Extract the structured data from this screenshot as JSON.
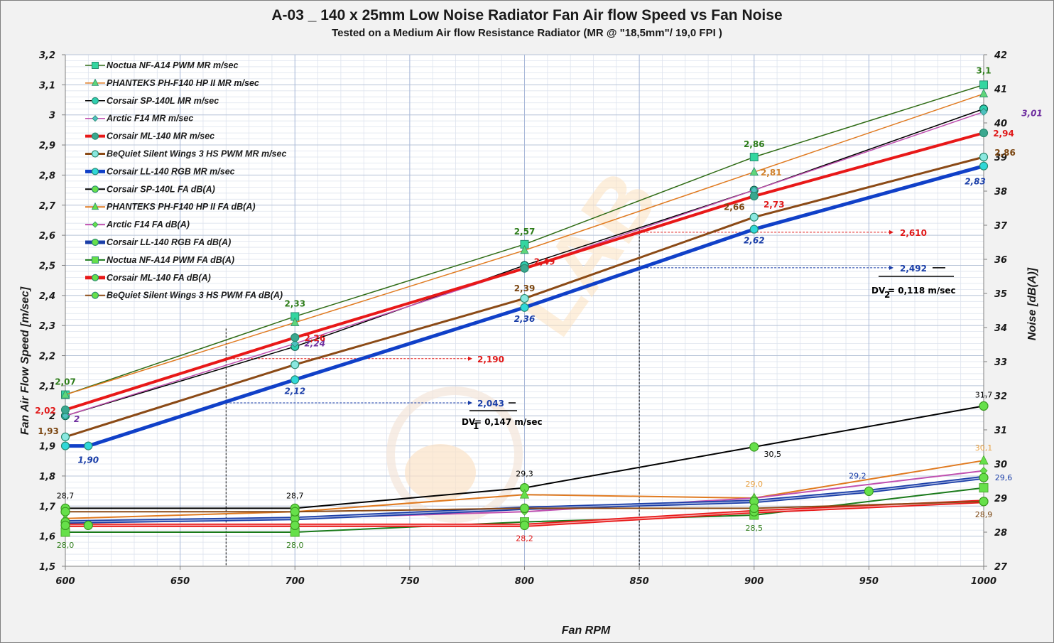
{
  "chart_data": {
    "type": "line",
    "title": "A-03 _ 140 x 25mm Low Noise  Radiator Fan Air flow Speed vs Fan Noise",
    "subtitle": "Tested on a Medium Air flow Resistance Radiator  (MR @ \"18,5mm\"/ 19,0 FPI )",
    "xlabel": "Fan RPM",
    "ylabel": "Fan Air Flow Speed [m/sec]",
    "y2label": "Noise [dB(A)]",
    "xlim": [
      600,
      1000
    ],
    "ylim": [
      1.5,
      3.2
    ],
    "y2lim": [
      27,
      42
    ],
    "x_ticks": [
      "600",
      "650",
      "700",
      "750",
      "800",
      "850",
      "900",
      "950",
      "1000"
    ],
    "y_ticks": [
      "1,5",
      "1,6",
      "1,7",
      "1,8",
      "1,9",
      "2",
      "2,1",
      "2,2",
      "2,3",
      "2,4",
      "2,5",
      "2,6",
      "2,7",
      "2,8",
      "2,9",
      "3",
      "3,1",
      "3,2"
    ],
    "y2_ticks": [
      "27",
      "28",
      "29",
      "30",
      "31",
      "32",
      "33",
      "34",
      "35",
      "36",
      "37",
      "38",
      "39",
      "40",
      "41",
      "42"
    ],
    "grid": true,
    "legend_position": "top-left",
    "speed_series": [
      {
        "name": "Noctua NF-A14 PWM MR m/sec",
        "color": "#2e6b14",
        "marker": "square",
        "marker_fill": "#33d6a0",
        "width": 1.5,
        "x": [
          600,
          700,
          800,
          900,
          1000
        ],
        "values": [
          2.07,
          2.33,
          2.57,
          2.86,
          3.1
        ],
        "labels": [
          "2,07",
          "2,33",
          "2,57",
          "2,86",
          "3,1"
        ],
        "label_color": "#2e7d1a"
      },
      {
        "name": "PHANTEKS PH-F140 HP II MR m/sec",
        "color": "#e07a20",
        "marker": "triangle",
        "marker_fill": "#5fd67a",
        "width": 1.5,
        "x": [
          600,
          700,
          800,
          900,
          1000
        ],
        "values": [
          2.07,
          2.31,
          2.55,
          2.81,
          3.07
        ],
        "labels": [
          "",
          "",
          "",
          "2,81",
          ""
        ],
        "label_color": "#d0802a"
      },
      {
        "name": "Corsair SP-140L MR m/sec",
        "color": "#000000",
        "marker": "circle",
        "marker_fill": "#2fcfb0",
        "width": 1.5,
        "x": [
          600,
          700,
          800,
          900,
          1000
        ],
        "values": [
          2.0,
          2.23,
          2.5,
          2.75,
          3.02
        ],
        "labels": [
          "",
          "",
          "",
          "",
          ""
        ],
        "label_color": "#000000"
      },
      {
        "name": "Arctic F14 MR m/sec",
        "color": "#c050b0",
        "marker": "diamond",
        "marker_fill": "#4fc0c0",
        "width": 1.5,
        "x": [
          600,
          700,
          800,
          900,
          1000
        ],
        "values": [
          2.0,
          2.24,
          2.49,
          2.75,
          3.01
        ],
        "labels": [
          "2",
          "2,24",
          "",
          "",
          "3,01"
        ],
        "label_color": "#7030a0"
      },
      {
        "name": "Corsair ML-140 MR m/sec",
        "color": "#e81818",
        "marker": "circle",
        "marker_fill": "#3aa890",
        "width": 4,
        "x": [
          600,
          700,
          800,
          900,
          1000
        ],
        "values": [
          2.02,
          2.26,
          2.49,
          2.73,
          2.94
        ],
        "labels": [
          "2,02",
          "2,26",
          "2,49",
          "2,73",
          "2,94"
        ],
        "label_color": "#e01818"
      },
      {
        "name": "BeQuiet Silent Wings 3 HS PWM MR m/sec",
        "color": "#8b4a16",
        "marker": "circle",
        "marker_fill": "#8ae8e0",
        "width": 3,
        "x": [
          600,
          700,
          800,
          900,
          1000
        ],
        "values": [
          1.93,
          2.17,
          2.39,
          2.66,
          2.86
        ],
        "labels": [
          "1,93",
          "",
          "2,39",
          "2,66",
          "2,86"
        ],
        "label_color": "#7a4510"
      },
      {
        "name": "Corsair LL-140  RGB MR m/sec",
        "color": "#1040c8",
        "marker": "circle",
        "marker_fill": "#30d8d8",
        "width": 5,
        "x": [
          600,
          610,
          700,
          800,
          900,
          1000
        ],
        "values": [
          1.9,
          1.9,
          2.12,
          2.36,
          2.62,
          2.83
        ],
        "labels": [
          "",
          "1,90",
          "2,12",
          "2,36",
          "2,62",
          "2,83"
        ],
        "label_color": "#1a3ea8"
      }
    ],
    "noise_series": [
      {
        "name": "Corsair SP-140L FA dB(A)",
        "color": "#000000",
        "marker": "circle",
        "x": [
          600,
          700,
          800,
          900,
          1000
        ],
        "values": [
          28.7,
          28.7,
          29.3,
          30.5,
          31.7
        ],
        "labels": [
          "28,7",
          "28,7",
          "29,3",
          "30,5",
          "31,7"
        ],
        "label_color": "#000000"
      },
      {
        "name": "PHANTEKS PH-F140 HP II FA dB(A)",
        "color": "#e07a20",
        "marker": "triangle",
        "x": [
          600,
          700,
          800,
          900,
          1000
        ],
        "values": [
          28.4,
          28.6,
          29.1,
          29.0,
          30.1
        ],
        "labels": [
          "",
          "",
          "",
          "29,0",
          "30,1"
        ],
        "label_color": "#e8a040"
      },
      {
        "name": "Arctic F14 FA dB(A)",
        "color": "#c050b0",
        "marker": "diamond",
        "x": [
          600,
          700,
          800,
          900,
          1000
        ],
        "values": [
          28.3,
          28.4,
          28.6,
          29.0,
          29.8
        ],
        "labels": [
          "",
          "",
          "",
          "",
          ""
        ],
        "label_color": "#c050b0"
      },
      {
        "name": "Corsair LL-140  RGB FA dB(A)",
        "color": "#1a3ea8",
        "marker": "circle",
        "x": [
          600,
          700,
          800,
          900,
          950,
          1000
        ],
        "values": [
          28.3,
          28.4,
          28.7,
          28.9,
          29.2,
          29.6
        ],
        "labels": [
          "",
          "",
          "",
          "",
          "29,2",
          "29,6"
        ],
        "label_color": "#1a3ea8"
      },
      {
        "name": "Noctua NF-A14 PWM FA dB(A)",
        "color": "#1a7a1a",
        "marker": "square",
        "x": [
          600,
          700,
          800,
          900,
          1000
        ],
        "values": [
          28.0,
          28.0,
          28.3,
          28.5,
          29.3
        ],
        "labels": [
          "28,0",
          "28,0",
          "",
          "28,5",
          ""
        ],
        "label_color": "#2e7d1a"
      },
      {
        "name": "Corsair ML-140 FA dB(A)",
        "color": "#e81818",
        "marker": "circle",
        "x": [
          600,
          610,
          700,
          800,
          900,
          1000
        ],
        "values": [
          28.2,
          28.2,
          28.2,
          28.2,
          28.6,
          28.9
        ],
        "labels": [
          "",
          "",
          "",
          "28,2",
          "",
          ""
        ],
        "label_color": "#e01818"
      },
      {
        "name": "BeQuiet Silent Wings 3 HS PWM FA dB(A)",
        "color": "#8b4a16",
        "marker": "circle",
        "x": [
          600,
          700,
          800,
          900,
          1000
        ],
        "values": [
          28.6,
          28.6,
          28.7,
          28.7,
          28.9
        ],
        "labels": [
          "",
          "",
          "",
          "",
          "28,9"
        ],
        "label_color": "#7a4510"
      }
    ],
    "annotations": {
      "vline_rpm_1": 670,
      "vline_rpm_2": 850,
      "ref1_red": "2,190",
      "ref1_red_value": 2.19,
      "ref1_blue": "2,043",
      "ref1_blue_value": 2.043,
      "dv1": "DV",
      "dv1_sub": "1",
      "dv1_text": "= 0,147 m/sec",
      "ref2_red": "2,610",
      "ref2_red_value": 2.61,
      "ref2_blue": "2,492",
      "ref2_blue_value": 2.492,
      "dv2": "DV",
      "dv2_sub": "2",
      "dv2_text": " = 0,118 m/sec"
    }
  }
}
